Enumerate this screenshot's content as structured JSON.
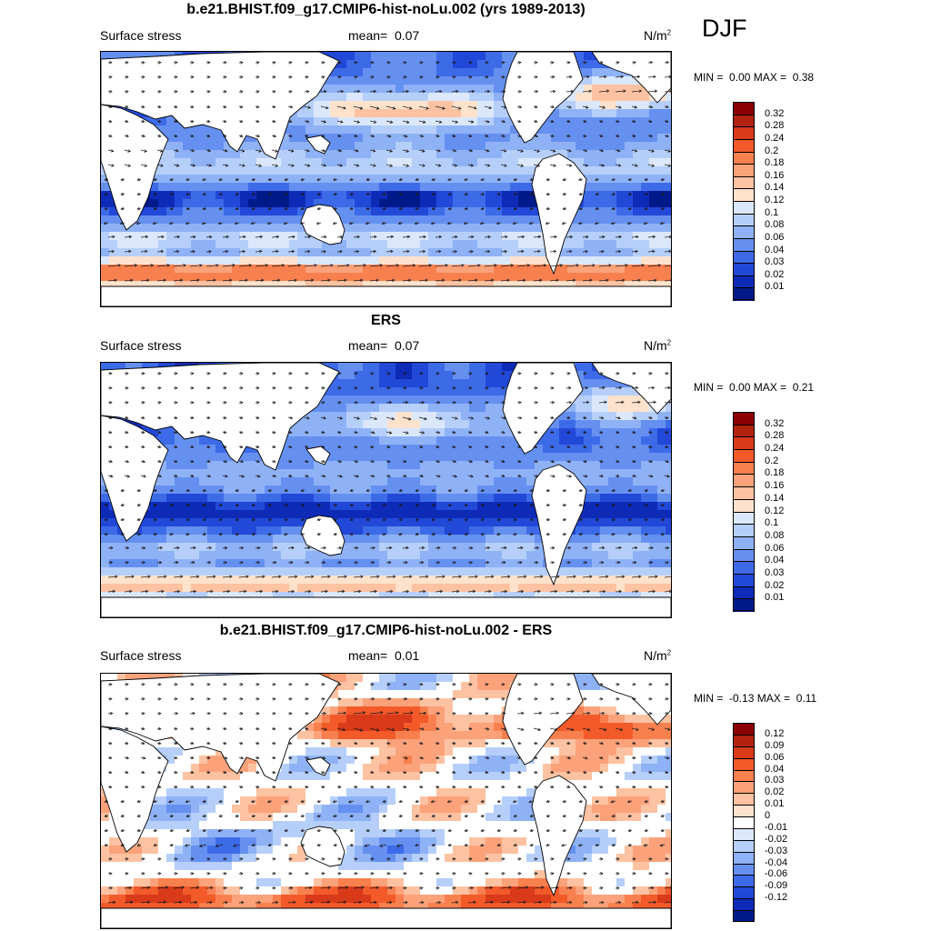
{
  "season": "DJF",
  "colors": {
    "land": "#ffffff",
    "coast": "#000000",
    "arrow": "#1a1a1a"
  },
  "panels": [
    {
      "id": "model",
      "title": "b.e21.BHIST.f09_g17.CMIP6-hist-noLu.002 (yrs 1989-2013)",
      "variable": "Surface stress",
      "mean_label": "mean=",
      "mean_value": "0.07",
      "units": "N/m",
      "units_sup": "2",
      "min_label": "MIN =",
      "min_value": "0.00",
      "max_label": "MAX =",
      "max_value": "0.38",
      "colorbar": {
        "colors": [
          "#8b0000",
          "#b2220f",
          "#d83a1a",
          "#f25a2a",
          "#f8804f",
          "#fba27b",
          "#fdc2a2",
          "#fee2cc",
          "#dbe8fc",
          "#b6cffa",
          "#8fb2f6",
          "#6590f0",
          "#3d6be8",
          "#2248d8",
          "#0e2bb8",
          "#001a8a"
        ],
        "labels": [
          "0.32",
          "0.28",
          "0.24",
          "0.2",
          "0.18",
          "0.16",
          "0.14",
          "0.12",
          "0.1",
          "0.08",
          "0.06",
          "0.04",
          "0.03",
          "0.02",
          "0.01"
        ]
      }
    },
    {
      "id": "obs",
      "title": "ERS",
      "variable": "Surface stress",
      "mean_label": "mean=",
      "mean_value": "0.07",
      "units": "N/m",
      "units_sup": "2",
      "min_label": "MIN =",
      "min_value": "0.00",
      "max_label": "MAX =",
      "max_value": "0.21",
      "colorbar": {
        "colors": [
          "#8b0000",
          "#b2220f",
          "#d83a1a",
          "#f25a2a",
          "#f8804f",
          "#fba27b",
          "#fdc2a2",
          "#fee2cc",
          "#dbe8fc",
          "#b6cffa",
          "#8fb2f6",
          "#6590f0",
          "#3d6be8",
          "#2248d8",
          "#0e2bb8",
          "#001a8a"
        ],
        "labels": [
          "0.32",
          "0.28",
          "0.24",
          "0.2",
          "0.18",
          "0.16",
          "0.14",
          "0.12",
          "0.1",
          "0.08",
          "0.06",
          "0.04",
          "0.03",
          "0.02",
          "0.01"
        ]
      }
    },
    {
      "id": "diff",
      "title": "b.e21.BHIST.f09_g17.CMIP6-hist-noLu.002 - ERS",
      "variable": "Surface stress",
      "mean_label": "mean=",
      "mean_value": "0.01",
      "units": "N/m",
      "units_sup": "2",
      "min_label": "MIN =",
      "min_value": "-0.13",
      "max_label": "MAX =",
      "max_value": "0.11",
      "colorbar": {
        "colors": [
          "#8b0000",
          "#b2220f",
          "#d83a1a",
          "#f25a2a",
          "#f8804f",
          "#fba27b",
          "#fdc2a2",
          "#fee2cc",
          "#ffffff",
          "#dbe8fc",
          "#b6cffa",
          "#8fb2f6",
          "#6590f0",
          "#3d6be8",
          "#2248d8",
          "#0e2bb8",
          "#001a8a"
        ],
        "labels": [
          "0.12",
          "0.09",
          "0.06",
          "0.04",
          "0.03",
          "0.02",
          "0.01",
          "0",
          "-0.01",
          "-0.02",
          "-0.03",
          "-0.04",
          "-0.06",
          "-0.09",
          "-0.12"
        ]
      }
    }
  ]
}
